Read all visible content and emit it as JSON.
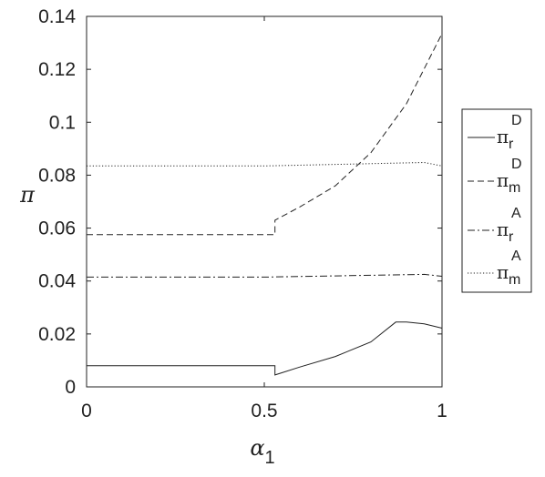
{
  "chart_data": {
    "type": "line",
    "xlabel": "α",
    "xlabel_sub": "1",
    "ylabel": "π",
    "xlim": [
      0,
      1
    ],
    "ylim": [
      0,
      0.14
    ],
    "xticks": [
      0,
      0.5,
      1
    ],
    "xtick_labels": [
      "0",
      "0.5",
      "1"
    ],
    "yticks": [
      0,
      0.02,
      0.04,
      0.06,
      0.08,
      0.1,
      0.12,
      0.14
    ],
    "ytick_labels": [
      "0",
      "0.02",
      "0.04",
      "0.06",
      "0.08",
      "0.1",
      "0.12",
      "0.14"
    ],
    "grid": false,
    "legend_position": "outside-right",
    "series": [
      {
        "name": "π_r^D",
        "legend_base": "π",
        "legend_sub": "r",
        "legend_sup": "D",
        "style": "solid",
        "x": [
          0,
          0.53,
          0.53,
          0.6,
          0.7,
          0.8,
          0.87,
          0.9,
          0.95,
          1.0
        ],
        "y": [
          0.008,
          0.008,
          0.0045,
          0.0075,
          0.0115,
          0.017,
          0.0245,
          0.0245,
          0.0238,
          0.0222
        ]
      },
      {
        "name": "π_m^D",
        "legend_base": "π",
        "legend_sub": "m",
        "legend_sup": "D",
        "style": "dashed",
        "x": [
          0,
          0.53,
          0.53,
          0.6,
          0.7,
          0.8,
          0.9,
          1.0
        ],
        "y": [
          0.0575,
          0.0575,
          0.063,
          0.068,
          0.076,
          0.0885,
          0.107,
          0.1335
        ]
      },
      {
        "name": "π_r^A",
        "legend_base": "π",
        "legend_sub": "r",
        "legend_sup": "A",
        "style": "dashdot",
        "x": [
          0,
          0.5,
          0.95,
          1.0
        ],
        "y": [
          0.0415,
          0.0415,
          0.0425,
          0.0418
        ]
      },
      {
        "name": "π_m^A",
        "legend_base": "π",
        "legend_sub": "m",
        "legend_sup": "A",
        "style": "dotted",
        "x": [
          0,
          0.5,
          0.95,
          1.0
        ],
        "y": [
          0.0835,
          0.0835,
          0.0848,
          0.0835
        ]
      }
    ]
  }
}
